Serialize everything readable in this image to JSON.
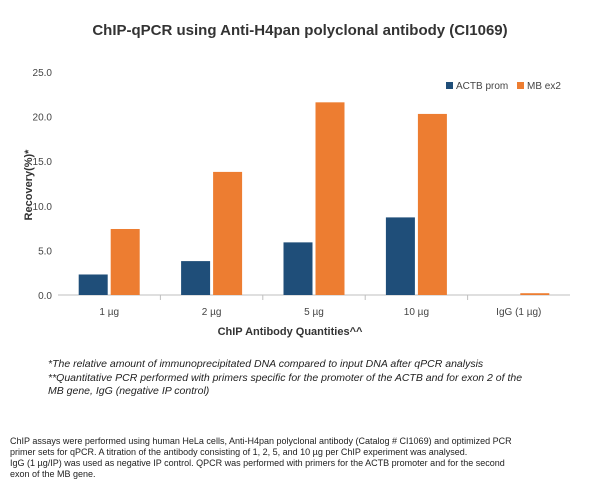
{
  "chart_data": {
    "type": "bar",
    "title": "ChIP-qPCR using Anti-H4pan polyclonal antibody (CI1069)",
    "xlabel": "ChIP Antibody Quantities^^",
    "ylabel": "Recovery(%)*",
    "categories": [
      "1 µg",
      "2 µg",
      "5 µg",
      "10 µg",
      "IgG (1 µg)"
    ],
    "series": [
      {
        "name": "ACTB prom",
        "values": [
          2.3,
          3.8,
          5.9,
          8.7,
          0.0
        ]
      },
      {
        "name": "MB ex2",
        "values": [
          7.4,
          13.8,
          21.6,
          20.3,
          0.2
        ]
      }
    ],
    "ylim": [
      0,
      25
    ],
    "yticks": [
      "0.0",
      "5.0",
      "10.0",
      "15.0",
      "20.0",
      "25.0"
    ],
    "grid": false,
    "legend_position": "top-right",
    "colors": {
      "ACTB prom": "#1f4e79",
      "MB ex2": "#ed7d31"
    }
  },
  "notes": [
    "*The relative amount of immunoprecipitated DNA compared to input DNA after qPCR analysis",
    "**Quantitative PCR performed with primers specific for the promoter of the ACTB and for exon 2 of the",
    "MB gene, IgG (negative IP control)"
  ],
  "caption": [
    "ChIP assays were performed using human HeLa cells, Anti-H4pan polyclonal antibody (Catalog # CI1069) and optimized PCR",
    "primer sets for qPCR. A titration of the antibody consisting of 1, 2, 5, and 10 µg per ChIP experiment was analysed.",
    "IgG (1 µg/IP) was used as negative IP control. QPCR was performed with primers for the ACTB promoter and for the second",
    "exon of the MB gene."
  ]
}
